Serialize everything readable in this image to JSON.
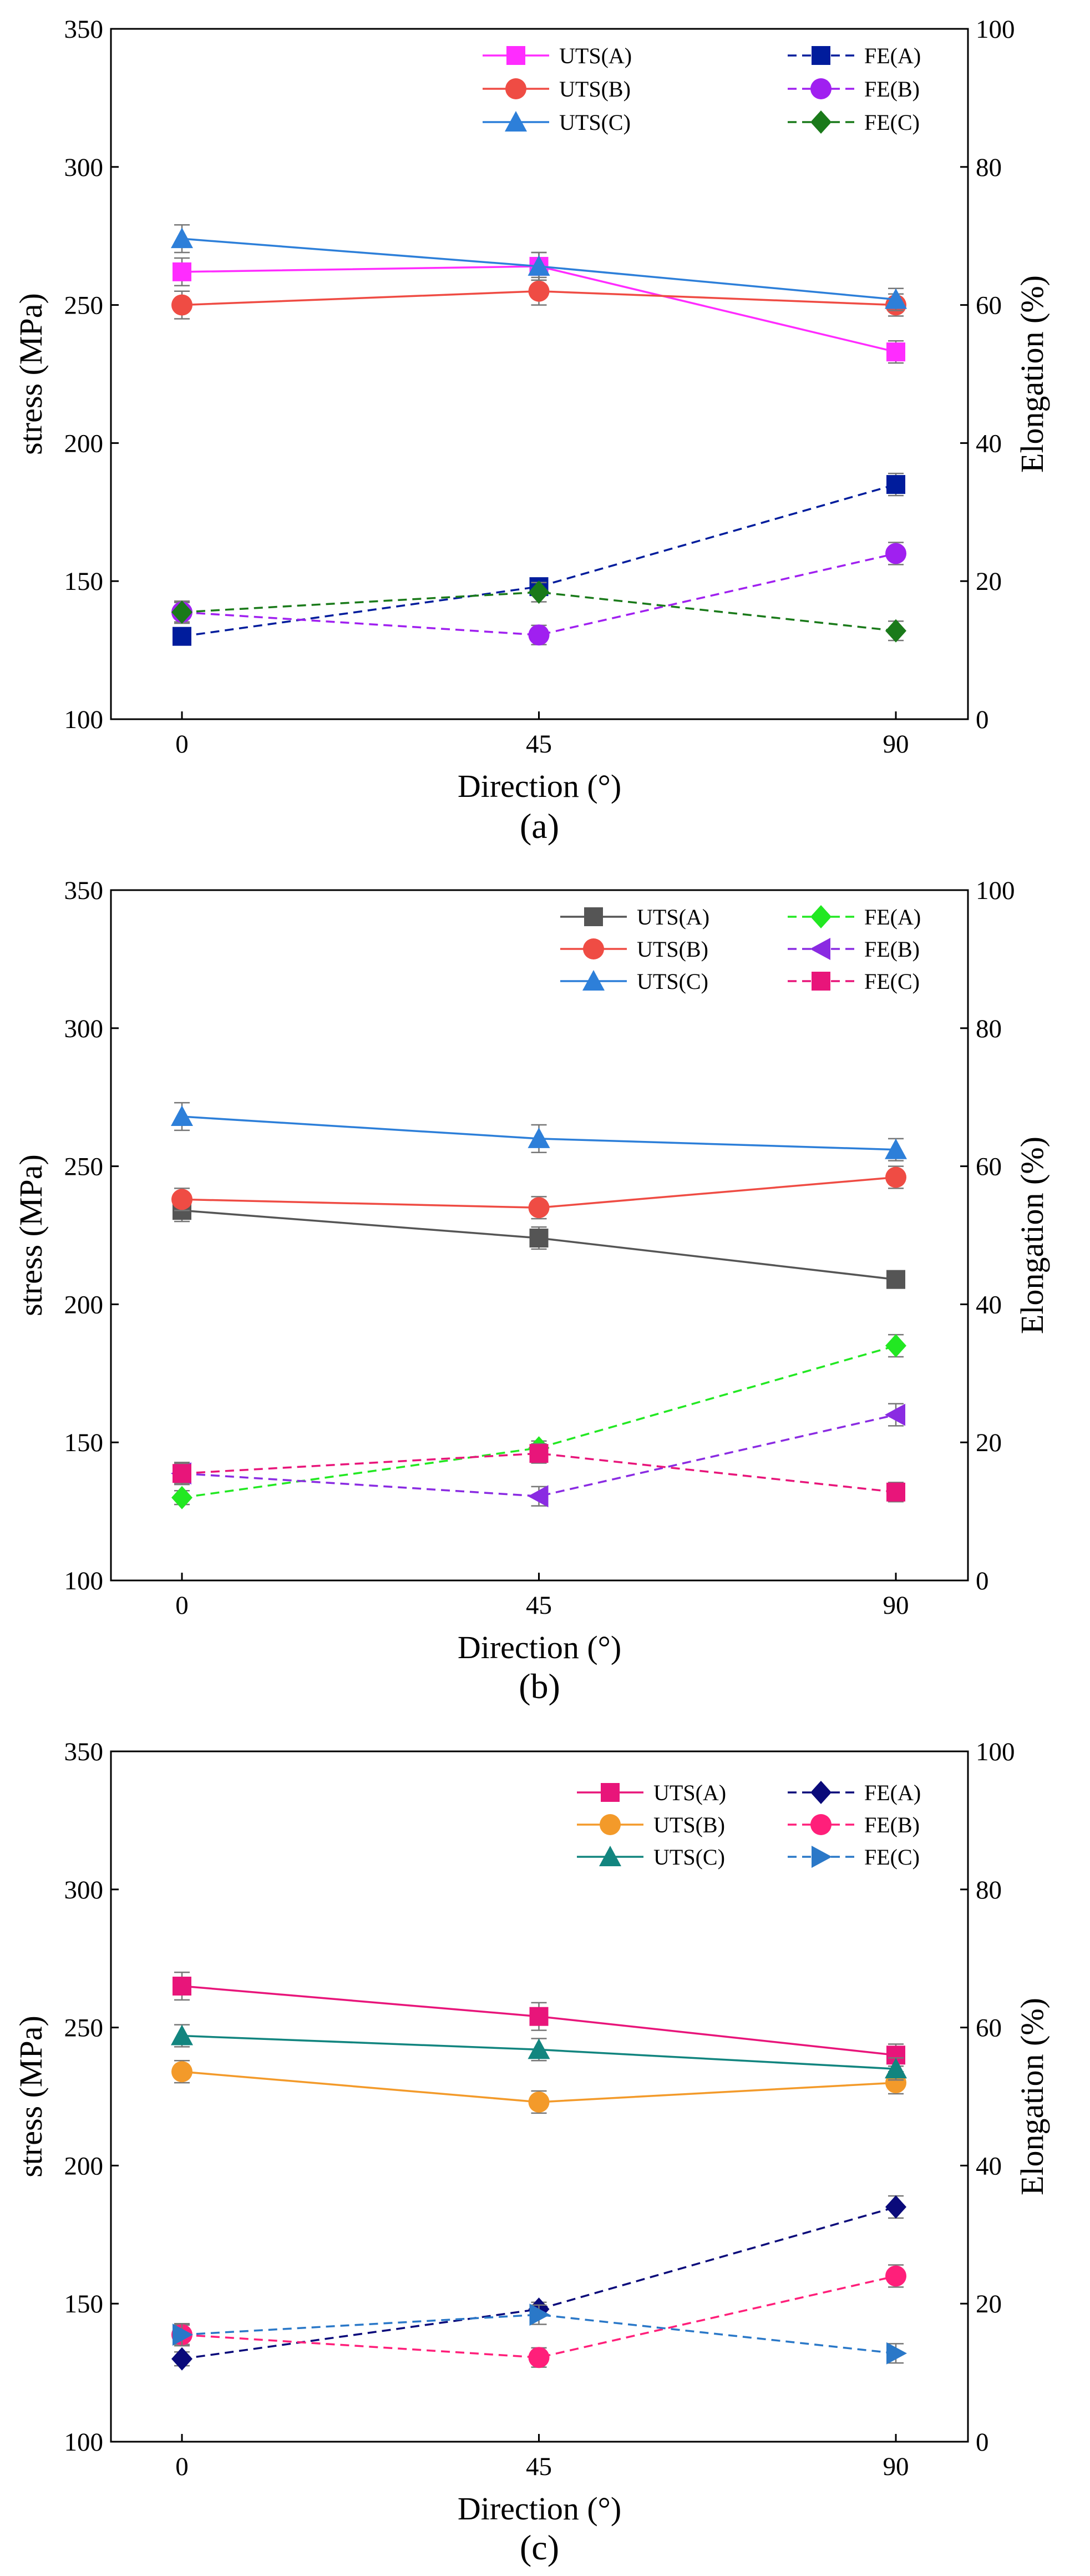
{
  "chart_data": [
    {
      "type": "line",
      "panel_label": "(a)",
      "xlabel": "Direction (°)",
      "ylabel": "stress (MPa)",
      "y2label": "Elongation (%)",
      "x": [
        0,
        45,
        90
      ],
      "xticks": [
        "0",
        "45",
        "90"
      ],
      "ylim": [
        100,
        350
      ],
      "yticks": [
        "100",
        "150",
        "200",
        "250",
        "300",
        "350"
      ],
      "y2lim": [
        0,
        100
      ],
      "y2ticks": [
        "0",
        "20",
        "40",
        "60",
        "80",
        "100"
      ],
      "legend_placement": "top",
      "series": [
        {
          "name": "UTS(A)",
          "axis": "left",
          "values": [
            262,
            264,
            233
          ],
          "errors": [
            5,
            5,
            4
          ],
          "color": "#ff2cff",
          "marker": "square",
          "dashed": false
        },
        {
          "name": "UTS(B)",
          "axis": "left",
          "values": [
            250,
            255,
            250
          ],
          "errors": [
            5,
            5,
            4
          ],
          "color": "#ef4c44",
          "marker": "circle",
          "dashed": false
        },
        {
          "name": "UTS(C)",
          "axis": "left",
          "values": [
            274,
            264,
            252
          ],
          "errors": [
            5,
            5,
            4
          ],
          "color": "#2d7fd9",
          "marker": "triangle",
          "dashed": false
        },
        {
          "name": "FE(A)",
          "axis": "right",
          "values": [
            12,
            19.2,
            34
          ],
          "errors": [
            1,
            1,
            1.6
          ],
          "color": "#001c9c",
          "marker": "square",
          "dashed": true
        },
        {
          "name": "FE(B)",
          "axis": "right",
          "values": [
            15.5,
            12.2,
            24
          ],
          "errors": [
            1.4,
            1.4,
            1.6
          ],
          "color": "#a020f0",
          "marker": "circle",
          "dashed": true
        },
        {
          "name": "FE(C)",
          "axis": "right",
          "values": [
            15.5,
            18.4,
            12.8
          ],
          "errors": [
            1.6,
            1.4,
            1.4
          ],
          "color": "#1a7a1a",
          "marker": "diamond",
          "dashed": true
        }
      ],
      "legend_columns": [
        [
          "UTS(A)",
          "UTS(B)",
          "UTS(C)"
        ],
        [
          "FE(A)",
          "FE(B)",
          "FE(C)"
        ]
      ]
    },
    {
      "type": "line",
      "panel_label": "(b)",
      "xlabel": "Direction (°)",
      "ylabel": "stress (MPa)",
      "y2label": "Elongation (%)",
      "x": [
        0,
        45,
        90
      ],
      "xticks": [
        "0",
        "45",
        "90"
      ],
      "ylim": [
        100,
        350
      ],
      "yticks": [
        "100",
        "150",
        "200",
        "250",
        "300",
        "350"
      ],
      "y2lim": [
        0,
        100
      ],
      "y2ticks": [
        "0",
        "20",
        "40",
        "60",
        "80",
        "100"
      ],
      "legend_placement": "top-right",
      "series": [
        {
          "name": "UTS(A)",
          "axis": "left",
          "values": [
            234,
            224,
            209
          ],
          "errors": [
            4,
            4,
            3
          ],
          "color": "#555555",
          "marker": "square",
          "dashed": false
        },
        {
          "name": "UTS(B)",
          "axis": "left",
          "values": [
            238,
            235,
            246
          ],
          "errors": [
            4,
            4,
            4
          ],
          "color": "#ef4c44",
          "marker": "circle",
          "dashed": false
        },
        {
          "name": "UTS(C)",
          "axis": "left",
          "values": [
            268,
            260,
            256
          ],
          "errors": [
            5,
            5,
            4
          ],
          "color": "#2d7fd9",
          "marker": "triangle",
          "dashed": false
        },
        {
          "name": "FE(A)",
          "axis": "right",
          "values": [
            12,
            19.2,
            34
          ],
          "errors": [
            1,
            1,
            1.6
          ],
          "color": "#22e822",
          "marker": "diamond",
          "dashed": true
        },
        {
          "name": "FE(B)",
          "axis": "right",
          "values": [
            15.5,
            12.2,
            24
          ],
          "errors": [
            1.4,
            1.4,
            1.6
          ],
          "color": "#8a2be2",
          "marker": "left-triangle",
          "dashed": true
        },
        {
          "name": "FE(C)",
          "axis": "right",
          "values": [
            15.5,
            18.4,
            12.8
          ],
          "errors": [
            1.6,
            1.4,
            1.4
          ],
          "color": "#e8157a",
          "marker": "square",
          "dashed": true
        }
      ],
      "legend_columns": [
        [
          "UTS(A)",
          "UTS(B)",
          "UTS(C)"
        ],
        [
          "FE(A)",
          "FE(B)",
          "FE(C)"
        ]
      ]
    },
    {
      "type": "line",
      "panel_label": "(c)",
      "xlabel": "Direction (°)",
      "ylabel": "stress (MPa)",
      "y2label": "Elongation (%)",
      "x": [
        0,
        45,
        90
      ],
      "xticks": [
        "0",
        "45",
        "90"
      ],
      "ylim": [
        100,
        350
      ],
      "yticks": [
        "100",
        "150",
        "200",
        "250",
        "300",
        "350"
      ],
      "y2lim": [
        0,
        100
      ],
      "y2ticks": [
        "0",
        "20",
        "40",
        "60",
        "80",
        "100"
      ],
      "legend_placement": "top-right",
      "series": [
        {
          "name": "UTS(A)",
          "axis": "left",
          "values": [
            265,
            254,
            240
          ],
          "errors": [
            5,
            5,
            4
          ],
          "color": "#e8157a",
          "marker": "square",
          "dashed": false
        },
        {
          "name": "UTS(B)",
          "axis": "left",
          "values": [
            234,
            223,
            230
          ],
          "errors": [
            4,
            4,
            4
          ],
          "color": "#f39a2a",
          "marker": "circle",
          "dashed": false
        },
        {
          "name": "UTS(C)",
          "axis": "left",
          "values": [
            247,
            242,
            235
          ],
          "errors": [
            4,
            4,
            4
          ],
          "color": "#12857f",
          "marker": "triangle",
          "dashed": false
        },
        {
          "name": "FE(A)",
          "axis": "right",
          "values": [
            12,
            19.2,
            34
          ],
          "errors": [
            1,
            1,
            1.6
          ],
          "color": "#0a0a7a",
          "marker": "diamond",
          "dashed": true
        },
        {
          "name": "FE(B)",
          "axis": "right",
          "values": [
            15.5,
            12.2,
            24
          ],
          "errors": [
            1.4,
            1.4,
            1.6
          ],
          "color": "#ff1f7a",
          "marker": "circle",
          "dashed": true
        },
        {
          "name": "FE(C)",
          "axis": "right",
          "values": [
            15.5,
            18.4,
            12.8
          ],
          "errors": [
            1.6,
            1.4,
            1.4
          ],
          "color": "#2a78c8",
          "marker": "right-triangle",
          "dashed": true
        }
      ],
      "legend_columns": [
        [
          "UTS(A)",
          "UTS(B)",
          "UTS(C)"
        ],
        [
          "FE(A)",
          "FE(B)",
          "FE(C)"
        ]
      ]
    }
  ]
}
